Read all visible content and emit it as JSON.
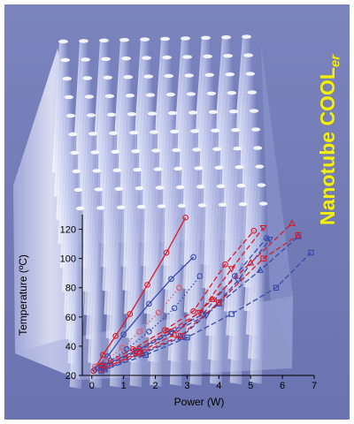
{
  "brand": {
    "main": "Nanotube COOL",
    "sub": "er"
  },
  "chart_data": {
    "type": "line",
    "xlabel": "Power (W)",
    "ylabel": "Temperature (ºC)",
    "xlim": [
      -0.3,
      7.0
    ],
    "ylim": [
      20,
      130
    ],
    "xticks": [
      "0",
      "1",
      "2",
      "3",
      "4",
      "5",
      "6",
      "7"
    ],
    "yticks": [
      "20",
      "40",
      "60",
      "80",
      "100",
      "120"
    ],
    "grid": false,
    "series": [
      {
        "color": "#d81b2a",
        "marker": "circle",
        "dash": "solid",
        "x": [
          0.05,
          0.35,
          0.75,
          1.2,
          1.75,
          2.35,
          2.95
        ],
        "y": [
          23,
          34,
          47,
          62,
          82,
          104,
          128
        ]
      },
      {
        "color": "#3b4aa8",
        "marker": "circle",
        "dash": "solid",
        "x": [
          0.1,
          0.5,
          1.0,
          1.8,
          2.5,
          3.2
        ],
        "y": [
          24,
          33,
          48,
          69,
          86,
          101
        ]
      },
      {
        "color": "#e05a6a",
        "marker": "circle",
        "dash": "dotted",
        "x": [
          0.1,
          0.45,
          0.95,
          1.5,
          2.1,
          2.75
        ],
        "y": [
          26,
          30,
          39,
          50,
          63,
          80
        ]
      },
      {
        "color": "#3b4aa8",
        "marker": "circle",
        "dash": "dotted",
        "x": [
          0.2,
          0.6,
          1.1,
          1.8,
          2.6,
          3.4
        ],
        "y": [
          25,
          30,
          38,
          50,
          66,
          88
        ]
      },
      {
        "color": "#d81b2a",
        "marker": "circle",
        "dash": "dashed",
        "x": [
          0.3,
          1.3,
          2.3,
          3.2,
          4.2,
          5.1
        ],
        "y": [
          27,
          38,
          51,
          64,
          96,
          119
        ]
      },
      {
        "color": "#3b4aa8",
        "marker": "circle",
        "dash": "dashed",
        "x": [
          0.4,
          1.5,
          2.5,
          3.5,
          4.5,
          5.5
        ],
        "y": [
          27,
          38,
          50,
          62,
          88,
          114
        ]
      },
      {
        "color": "#d81b2a",
        "marker": "triangle-down",
        "dash": "dashed",
        "x": [
          0.3,
          1.4,
          2.4,
          3.4,
          4.4,
          5.4
        ],
        "y": [
          26,
          37,
          50,
          63,
          93,
          121
        ]
      },
      {
        "color": "#3b4aa8",
        "marker": "triangle-down",
        "dash": "dashed",
        "x": [
          0.3,
          1.4,
          2.5,
          3.6,
          4.6,
          5.6
        ],
        "y": [
          25,
          36,
          49,
          61,
          85,
          113
        ]
      },
      {
        "color": "#d81b2a",
        "marker": "triangle-up",
        "dash": "dashed",
        "x": [
          0.4,
          1.5,
          2.6,
          3.8,
          5.0,
          6.3
        ],
        "y": [
          25,
          36,
          48,
          72,
          97,
          124
        ]
      },
      {
        "color": "#3b4aa8",
        "marker": "triangle-up",
        "dash": "dashed",
        "x": [
          0.4,
          1.6,
          2.8,
          4.0,
          5.3,
          6.5
        ],
        "y": [
          24,
          35,
          46,
          69,
          92,
          115
        ]
      },
      {
        "color": "#d81b2a",
        "marker": "square",
        "dash": "dashed",
        "x": [
          0.3,
          1.5,
          2.8,
          4.0,
          5.4,
          6.5
        ],
        "y": [
          24,
          35,
          47,
          70,
          100,
          116
        ]
      },
      {
        "color": "#3b4aa8",
        "marker": "square",
        "dash": "dashed",
        "x": [
          0.3,
          1.7,
          3.0,
          4.4,
          5.8,
          6.9
        ],
        "y": [
          23,
          34,
          46,
          62,
          80,
          104
        ]
      }
    ]
  }
}
